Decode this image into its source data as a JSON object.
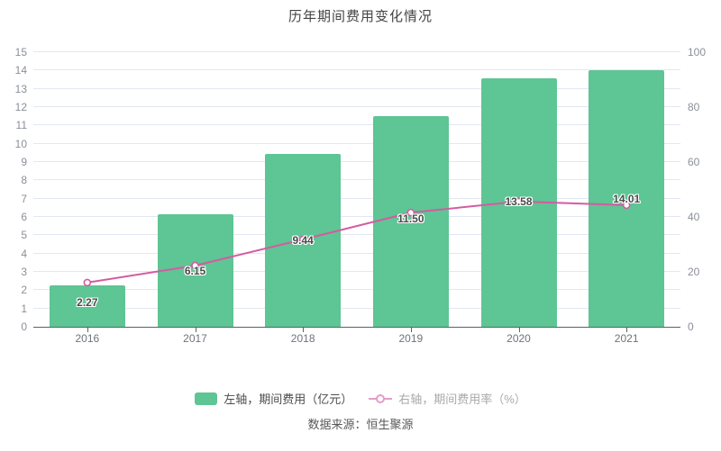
{
  "title": "历年期间费用变化情况",
  "source": "数据来源：恒生聚源",
  "legend": {
    "bar_label": "左轴，期间费用（亿元）",
    "line_label": "右轴，期间费用率（%）",
    "bar_label_color": "#4d4d4d",
    "line_label_color": "#a9a9a9"
  },
  "colors": {
    "bar": "#5ec594",
    "line": "#d45ba2",
    "grid": "#e2e7f2",
    "axis": "#5c6068",
    "value_label": "#4a4a4a"
  },
  "chart_data": {
    "type": "bar+line (dual axis)",
    "title": "历年期间费用变化情况",
    "categories": [
      "2016",
      "2017",
      "2018",
      "2019",
      "2020",
      "2021"
    ],
    "series": [
      {
        "name": "左轴，期间费用（亿元）",
        "type": "bar",
        "axis": "left",
        "values": [
          2.27,
          6.15,
          9.44,
          11.5,
          13.58,
          14.01
        ],
        "labels": [
          "2.27",
          "6.15",
          "9.44",
          "11.50",
          "13.58",
          "14.01"
        ]
      },
      {
        "name": "右轴，期间费用率（%）",
        "type": "line",
        "axis": "right",
        "values": [
          16.1,
          22.3,
          31.8,
          41.6,
          45.6,
          44.3
        ],
        "note": "values estimated from pixel positions; not labeled on chart"
      }
    ],
    "left_axis": {
      "min": 0,
      "max": 15,
      "step": 1,
      "ticks": [
        0,
        1,
        2,
        3,
        4,
        5,
        6,
        7,
        8,
        9,
        10,
        11,
        12,
        13,
        14,
        15
      ]
    },
    "right_axis": {
      "min": 0,
      "max": 100,
      "step": 20,
      "ticks": [
        0,
        20,
        40,
        60,
        80,
        100
      ]
    },
    "grid": true,
    "legend_position": "bottom"
  }
}
